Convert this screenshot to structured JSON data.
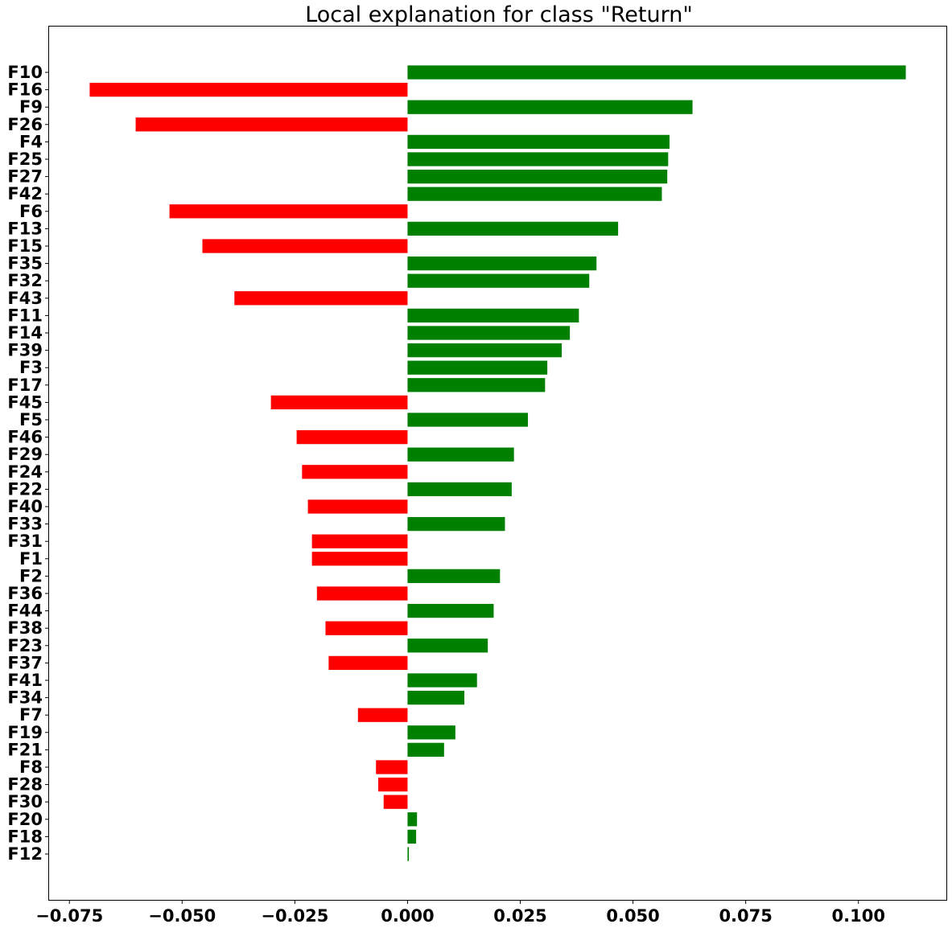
{
  "chart_data": {
    "type": "bar",
    "orientation": "horizontal",
    "title": "Local explanation for class \"Return\"",
    "xlabel": "",
    "ylabel": "",
    "xlim": [
      -0.0795,
      0.1195
    ],
    "xticks": [
      -0.075,
      -0.05,
      -0.025,
      0.0,
      0.025,
      0.05,
      0.075,
      0.1
    ],
    "xtick_labels": [
      "−0.075",
      "−0.050",
      "−0.025",
      "0.000",
      "0.025",
      "0.050",
      "0.075",
      "0.100"
    ],
    "grid": false,
    "colors": {
      "positive": "#008000",
      "negative": "#ff0000"
    },
    "categories": [
      "F10",
      "F16",
      "F9",
      "F26",
      "F4",
      "F25",
      "F27",
      "F42",
      "F6",
      "F13",
      "F15",
      "F35",
      "F32",
      "F43",
      "F11",
      "F14",
      "F39",
      "F3",
      "F17",
      "F45",
      "F5",
      "F46",
      "F29",
      "F24",
      "F22",
      "F40",
      "F33",
      "F31",
      "F1",
      "F2",
      "F36",
      "F44",
      "F38",
      "F23",
      "F37",
      "F41",
      "F34",
      "F7",
      "F19",
      "F21",
      "F8",
      "F28",
      "F30",
      "F20",
      "F18",
      "F12"
    ],
    "values": [
      0.1105,
      -0.0705,
      0.0632,
      -0.0603,
      0.0581,
      0.0578,
      0.0576,
      0.0564,
      -0.0528,
      0.0467,
      -0.0455,
      0.0419,
      0.0403,
      -0.0384,
      0.038,
      0.036,
      0.0342,
      0.031,
      0.0305,
      -0.0303,
      0.0267,
      -0.0246,
      0.0236,
      -0.0234,
      0.0231,
      -0.0221,
      0.0216,
      -0.0212,
      -0.0212,
      0.0205,
      -0.0201,
      0.0191,
      -0.0182,
      0.0178,
      -0.0175,
      0.0154,
      0.0126,
      -0.011,
      0.0106,
      0.0081,
      -0.007,
      -0.0065,
      -0.0053,
      0.0021,
      0.0019,
      0.0003
    ]
  }
}
